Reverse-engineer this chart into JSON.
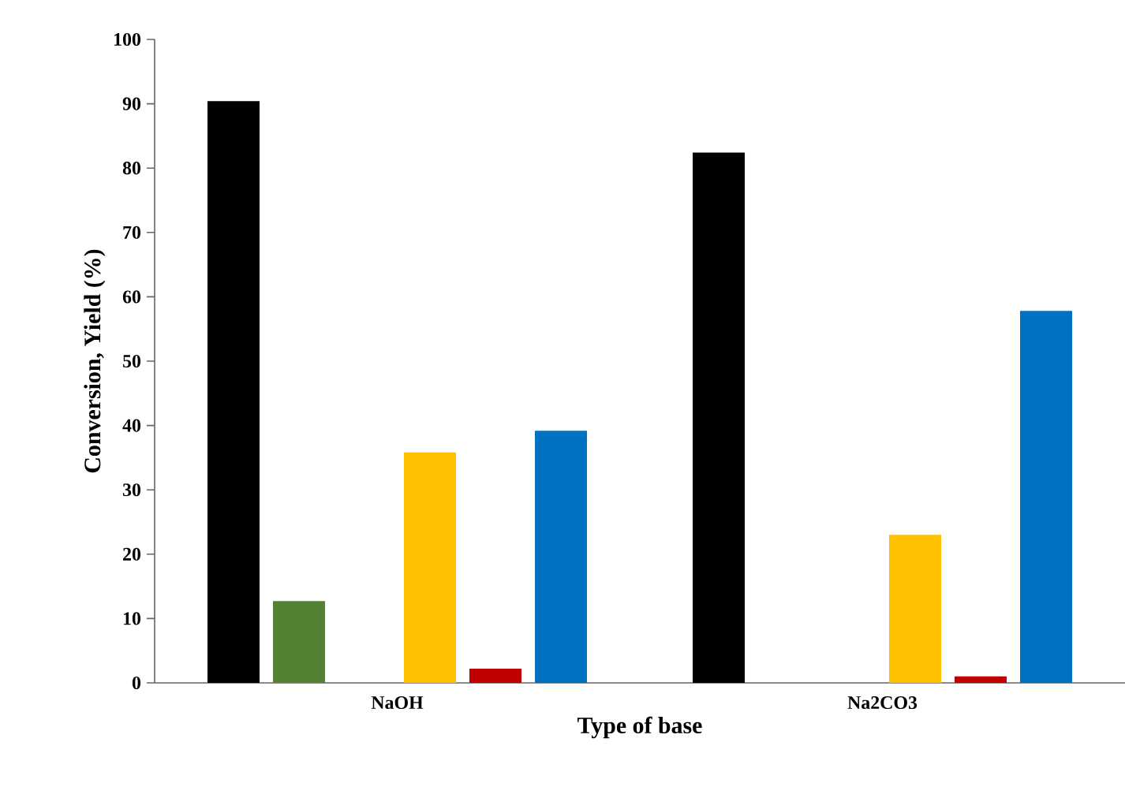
{
  "chart_data": {
    "type": "bar",
    "xlabel": "Type of base",
    "ylabel": "Conversion, Yield (%)",
    "categories": [
      "NaOH",
      "Na2CO3"
    ],
    "series": [
      {
        "color": "#000000",
        "values": [
          90.4,
          82.4
        ]
      },
      {
        "color": "#548235",
        "values": [
          12.7,
          null
        ]
      },
      {
        "color": "#a5a5a5",
        "values": [
          null,
          null
        ]
      },
      {
        "color": "#ffc000",
        "values": [
          35.8,
          23.0
        ]
      },
      {
        "color": "#c00000",
        "values": [
          2.2,
          1.0
        ]
      },
      {
        "color": "#0070c0",
        "values": [
          39.2,
          57.8
        ]
      }
    ],
    "ylim": [
      0,
      100
    ],
    "yticks": [
      0,
      10,
      20,
      30,
      40,
      50,
      60,
      70,
      80,
      90,
      100
    ]
  }
}
